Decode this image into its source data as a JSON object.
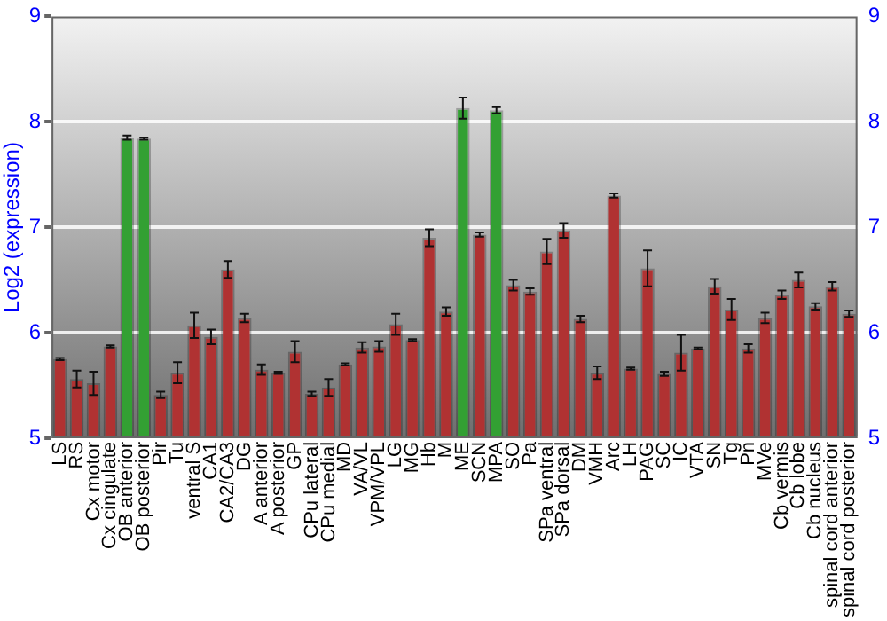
{
  "chart_data": {
    "type": "bar",
    "ylabel": "Log2 (expression)",
    "categories": [
      "LS",
      "RS",
      "Cx motor",
      "Cx cingulate",
      "OB anterior",
      "OB posterior",
      "Pir",
      "Tu",
      "ventral S",
      "CA1",
      "CA2/CA3",
      "DG",
      "A anterior",
      "A posterior",
      "GP",
      "CPu lateral",
      "CPu medial",
      "MD",
      "VA/VL",
      "VPM/VPL",
      "LG",
      "MG",
      "Hb",
      "M",
      "ME",
      "SCN",
      "MPA",
      "SO",
      "Pa",
      "SPa ventral",
      "SPa dorsal",
      "DM",
      "VMH",
      "Arc",
      "LH",
      "PAG",
      "SC",
      "IC",
      "VTA",
      "SN",
      "Tg",
      "Pn",
      "MVe",
      "Cb vermis",
      "Cb lobe",
      "Cb nucleus",
      "spinal cord anterior",
      "spinal cord posterior"
    ],
    "values": [
      5.75,
      5.56,
      5.52,
      5.87,
      7.85,
      7.84,
      5.41,
      5.62,
      6.07,
      5.96,
      6.6,
      6.14,
      5.65,
      5.62,
      5.82,
      5.42,
      5.48,
      5.7,
      5.86,
      5.87,
      6.08,
      5.93,
      6.9,
      6.2,
      8.13,
      6.93,
      8.11,
      6.45,
      6.39,
      6.77,
      6.97,
      6.13,
      5.62,
      7.3,
      5.66,
      6.61,
      5.61,
      5.81,
      5.85,
      6.44,
      6.22,
      5.85,
      6.14,
      6.36,
      6.5,
      6.25,
      6.44,
      6.18
    ],
    "errors": [
      0.01,
      0.08,
      0.11,
      0.01,
      0.02,
      0.01,
      0.03,
      0.1,
      0.12,
      0.07,
      0.08,
      0.04,
      0.05,
      0.01,
      0.1,
      0.02,
      0.08,
      0.01,
      0.05,
      0.05,
      0.1,
      0.01,
      0.08,
      0.04,
      0.1,
      0.02,
      0.03,
      0.05,
      0.03,
      0.12,
      0.07,
      0.03,
      0.06,
      0.02,
      0.01,
      0.17,
      0.02,
      0.17,
      0.01,
      0.07,
      0.1,
      0.04,
      0.05,
      0.04,
      0.07,
      0.03,
      0.04,
      0.03
    ],
    "colors": [
      "#b03232",
      "#b03232",
      "#b03232",
      "#b03232",
      "#33a033",
      "#33a033",
      "#b03232",
      "#b03232",
      "#b03232",
      "#b03232",
      "#b03232",
      "#b03232",
      "#b03232",
      "#b03232",
      "#b03232",
      "#b03232",
      "#b03232",
      "#b03232",
      "#b03232",
      "#b03232",
      "#b03232",
      "#b03232",
      "#b03232",
      "#b03232",
      "#33a033",
      "#b03232",
      "#33a033",
      "#b03232",
      "#b03232",
      "#b03232",
      "#b03232",
      "#b03232",
      "#b03232",
      "#b03232",
      "#b03232",
      "#b03232",
      "#b03232",
      "#b03232",
      "#b03232",
      "#b03232",
      "#b03232",
      "#b03232",
      "#b03232",
      "#b03232",
      "#b03232",
      "#b03232",
      "#b03232",
      "#b03232"
    ],
    "ylim": [
      5,
      9
    ],
    "yticks": [
      5,
      6,
      7,
      8,
      9
    ],
    "y2lim": [
      5,
      9
    ],
    "y2ticks": [
      5,
      6,
      7,
      8,
      9
    ],
    "grid": "y",
    "legend": false
  }
}
